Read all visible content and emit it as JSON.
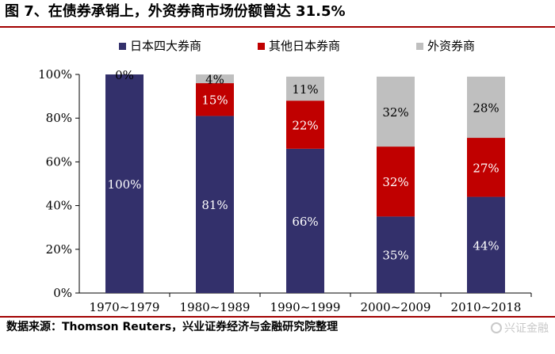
{
  "title": "图 7、在债券承销上，外资券商市场份额曾达 31.5%",
  "source": "数据来源：Thomson Reuters，兴业证券经济与金融研究院整理",
  "watermark": "兴证金融",
  "chart_data": {
    "type": "bar",
    "stacked": true,
    "categories": [
      "1970~1979",
      "1980~1989",
      "1990~1999",
      "2000~2009",
      "2010~2018"
    ],
    "series": [
      {
        "name": "日本四大券商",
        "color": "#33306b",
        "values": [
          100,
          81,
          66,
          35,
          44
        ],
        "labels": [
          "100%",
          "81%",
          "66%",
          "35%",
          "44%"
        ],
        "label_color": "#ffffff"
      },
      {
        "name": "其他日本券商",
        "color": "#c00000",
        "values": [
          0,
          15,
          22,
          32,
          27
        ],
        "labels": [
          "",
          "15%",
          "22%",
          "32%",
          "27%"
        ],
        "label_color": "#ffffff"
      },
      {
        "name": "外资券商",
        "color": "#bfbfbf",
        "values": [
          0,
          4,
          11,
          32,
          28
        ],
        "labels": [
          "0%",
          "4%",
          "11%",
          "32%",
          "28%"
        ],
        "label_color": "#000000"
      }
    ],
    "yticks": [
      "0%",
      "20%",
      "40%",
      "60%",
      "80%",
      "100%"
    ],
    "ylim": [
      0,
      100
    ],
    "legend_position": "top",
    "grid": false
  }
}
